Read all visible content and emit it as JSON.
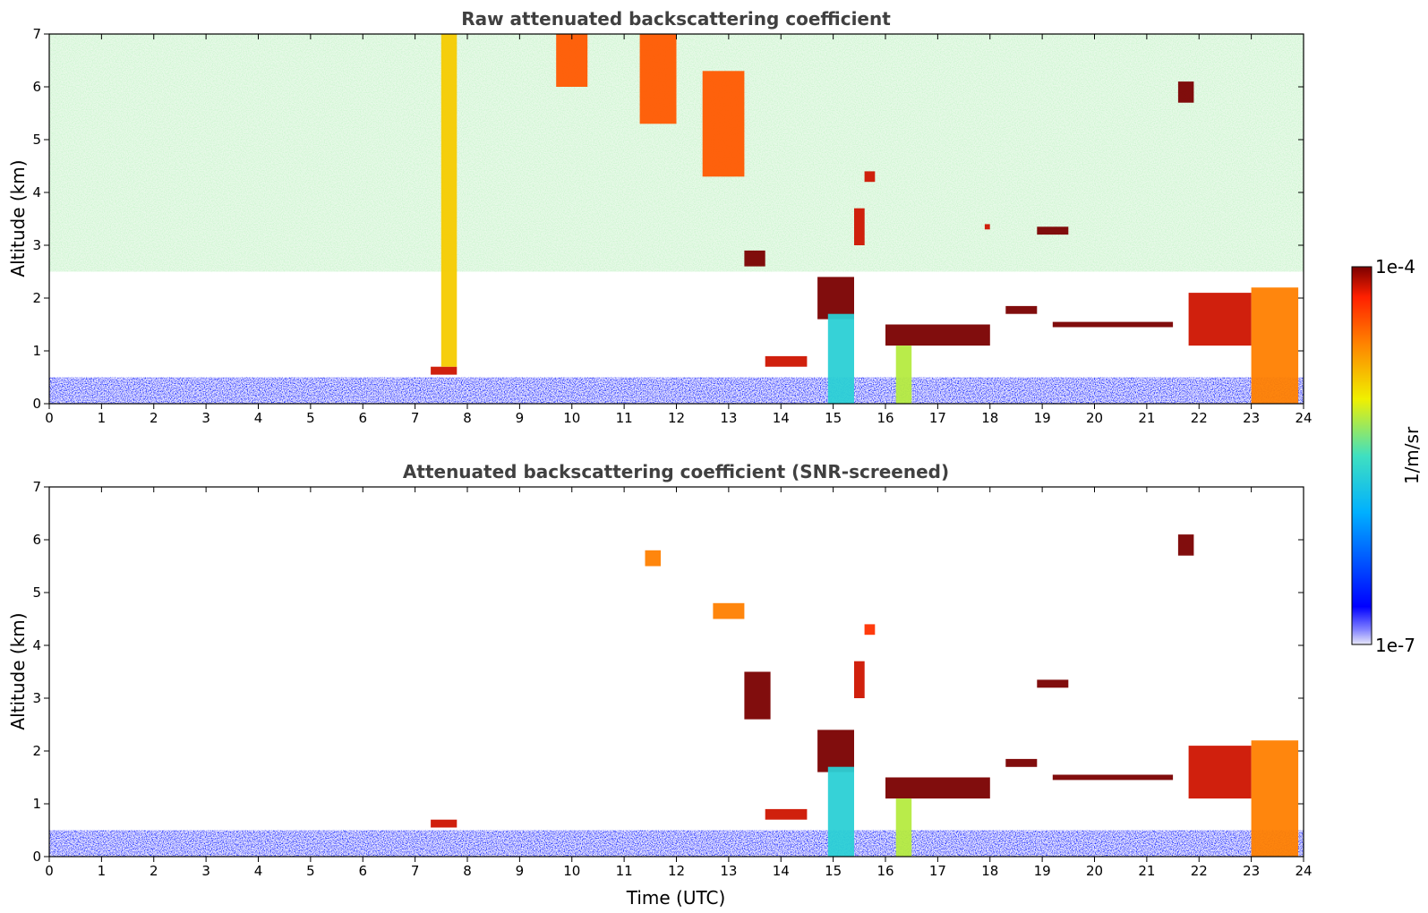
{
  "chart_data": [
    {
      "type": "heatmap",
      "title": "Raw attenuated backscattering coefficient",
      "xlabel": "",
      "ylabel": "Altitude (km)",
      "xlim": [
        0,
        24
      ],
      "ylim": [
        0,
        7
      ],
      "x_ticks": [
        0,
        1,
        2,
        3,
        4,
        5,
        6,
        7,
        8,
        9,
        10,
        11,
        12,
        13,
        14,
        15,
        16,
        17,
        18,
        19,
        20,
        21,
        22,
        23,
        24
      ],
      "y_ticks": [
        0,
        1,
        2,
        3,
        4,
        5,
        6,
        7
      ],
      "features": [
        {
          "type": "boundary_layer",
          "x": [
            0,
            24
          ],
          "y": [
            0,
            0.5
          ],
          "level": 0.15
        },
        {
          "type": "high_noise",
          "x": [
            0,
            24
          ],
          "y": [
            2.5,
            7
          ],
          "level": 0.55
        },
        {
          "type": "cloud",
          "x": [
            7.3,
            7.8
          ],
          "y": [
            0.55,
            0.7
          ],
          "level": 0.95
        },
        {
          "type": "virga",
          "x": [
            7.5,
            7.8
          ],
          "y": [
            0.7,
            7
          ],
          "level": 0.7
        },
        {
          "type": "cirrus",
          "x": [
            9.7,
            10.3
          ],
          "y": [
            6.0,
            7
          ],
          "level": 0.85
        },
        {
          "type": "cirrus",
          "x": [
            11.3,
            12.0
          ],
          "y": [
            5.3,
            7
          ],
          "level": 0.85
        },
        {
          "type": "cirrus",
          "x": [
            12.5,
            13.3
          ],
          "y": [
            4.3,
            6.3
          ],
          "level": 0.85
        },
        {
          "type": "cloud",
          "x": [
            13.3,
            13.7
          ],
          "y": [
            2.6,
            2.9
          ],
          "level": 1.0
        },
        {
          "type": "cloud",
          "x": [
            13.7,
            14.5
          ],
          "y": [
            0.7,
            0.9
          ],
          "level": 0.95
        },
        {
          "type": "cloud",
          "x": [
            14.7,
            15.4
          ],
          "y": [
            1.6,
            2.4
          ],
          "level": 1.0
        },
        {
          "type": "precipitation",
          "x": [
            14.9,
            15.4
          ],
          "y": [
            0,
            1.7
          ],
          "level": 0.45
        },
        {
          "type": "cloud",
          "x": [
            15.4,
            15.6
          ],
          "y": [
            3.0,
            3.7
          ],
          "level": 0.95
        },
        {
          "type": "cloud",
          "x": [
            15.6,
            15.8
          ],
          "y": [
            4.2,
            4.4
          ],
          "level": 0.95
        },
        {
          "type": "cloud",
          "x": [
            16.0,
            18.0
          ],
          "y": [
            1.1,
            1.5
          ],
          "level": 1.0
        },
        {
          "type": "precipitation",
          "x": [
            16.2,
            16.5
          ],
          "y": [
            0,
            1.1
          ],
          "level": 0.6
        },
        {
          "type": "cloud",
          "x": [
            17.9,
            18.0
          ],
          "y": [
            3.3,
            3.4
          ],
          "level": 0.95
        },
        {
          "type": "cloud",
          "x": [
            18.3,
            18.9
          ],
          "y": [
            1.7,
            1.85
          ],
          "level": 1.0
        },
        {
          "type": "cloud",
          "x": [
            18.9,
            19.5
          ],
          "y": [
            3.2,
            3.35
          ],
          "level": 1.0
        },
        {
          "type": "cloud",
          "x": [
            19.2,
            21.5
          ],
          "y": [
            1.45,
            1.55
          ],
          "level": 1.0
        },
        {
          "type": "cloud",
          "x": [
            21.6,
            21.9
          ],
          "y": [
            5.7,
            6.1
          ],
          "level": 1.0
        },
        {
          "type": "cloud",
          "x": [
            21.8,
            23.0
          ],
          "y": [
            1.1,
            2.1
          ],
          "level": 0.95
        },
        {
          "type": "precipitation",
          "x": [
            23.0,
            23.9
          ],
          "y": [
            0,
            2.2
          ],
          "level": 0.8
        }
      ]
    },
    {
      "type": "heatmap",
      "title": "Attenuated backscattering coefficient (SNR-screened)",
      "xlabel": "Time (UTC)",
      "ylabel": "Altitude (km)",
      "xlim": [
        0,
        24
      ],
      "ylim": [
        0,
        7
      ],
      "x_ticks": [
        0,
        1,
        2,
        3,
        4,
        5,
        6,
        7,
        8,
        9,
        10,
        11,
        12,
        13,
        14,
        15,
        16,
        17,
        18,
        19,
        20,
        21,
        22,
        23,
        24
      ],
      "y_ticks": [
        0,
        1,
        2,
        3,
        4,
        5,
        6,
        7
      ],
      "features": [
        {
          "type": "boundary_layer",
          "x": [
            0,
            24
          ],
          "y": [
            0,
            0.5
          ],
          "level": 0.15
        },
        {
          "type": "cloud",
          "x": [
            7.3,
            7.8
          ],
          "y": [
            0.55,
            0.7
          ],
          "level": 0.95
        },
        {
          "type": "cloud",
          "x": [
            11.4,
            11.7
          ],
          "y": [
            5.5,
            5.8
          ],
          "level": 0.8
        },
        {
          "type": "cloud",
          "x": [
            12.7,
            13.3
          ],
          "y": [
            4.5,
            4.8
          ],
          "level": 0.8
        },
        {
          "type": "cloud",
          "x": [
            13.3,
            13.8
          ],
          "y": [
            2.6,
            3.5
          ],
          "level": 1.0
        },
        {
          "type": "cloud",
          "x": [
            13.7,
            14.5
          ],
          "y": [
            0.7,
            0.9
          ],
          "level": 0.95
        },
        {
          "type": "cloud",
          "x": [
            14.7,
            15.4
          ],
          "y": [
            1.6,
            2.4
          ],
          "level": 1.0
        },
        {
          "type": "precipitation",
          "x": [
            14.9,
            15.4
          ],
          "y": [
            0,
            1.7
          ],
          "level": 0.45
        },
        {
          "type": "cloud",
          "x": [
            15.4,
            15.6
          ],
          "y": [
            3.0,
            3.7
          ],
          "level": 0.95
        },
        {
          "type": "cloud",
          "x": [
            15.6,
            15.8
          ],
          "y": [
            4.2,
            4.4
          ],
          "level": 0.9
        },
        {
          "type": "cloud",
          "x": [
            16.0,
            18.0
          ],
          "y": [
            1.1,
            1.5
          ],
          "level": 1.0
        },
        {
          "type": "precipitation",
          "x": [
            16.2,
            16.5
          ],
          "y": [
            0,
            1.1
          ],
          "level": 0.6
        },
        {
          "type": "cloud",
          "x": [
            18.3,
            18.9
          ],
          "y": [
            1.7,
            1.85
          ],
          "level": 1.0
        },
        {
          "type": "cloud",
          "x": [
            18.9,
            19.5
          ],
          "y": [
            3.2,
            3.35
          ],
          "level": 1.0
        },
        {
          "type": "cloud",
          "x": [
            19.2,
            21.5
          ],
          "y": [
            1.45,
            1.55
          ],
          "level": 1.0
        },
        {
          "type": "cloud",
          "x": [
            21.6,
            21.9
          ],
          "y": [
            5.7,
            6.1
          ],
          "level": 1.0
        },
        {
          "type": "cloud",
          "x": [
            21.8,
            23.0
          ],
          "y": [
            1.1,
            2.1
          ],
          "level": 0.95
        },
        {
          "type": "precipitation",
          "x": [
            23.0,
            23.9
          ],
          "y": [
            0,
            2.2
          ],
          "level": 0.8
        }
      ]
    }
  ],
  "colorbar": {
    "label": "1/m/sr",
    "max_label": "1e-4",
    "min_label": "1e-7",
    "colormap": "jet",
    "colors": [
      "#e8e8f8",
      "#0000ff",
      "#00b0ff",
      "#40e0c0",
      "#f0f000",
      "#ff8000",
      "#ff2000",
      "#7a0000"
    ]
  }
}
